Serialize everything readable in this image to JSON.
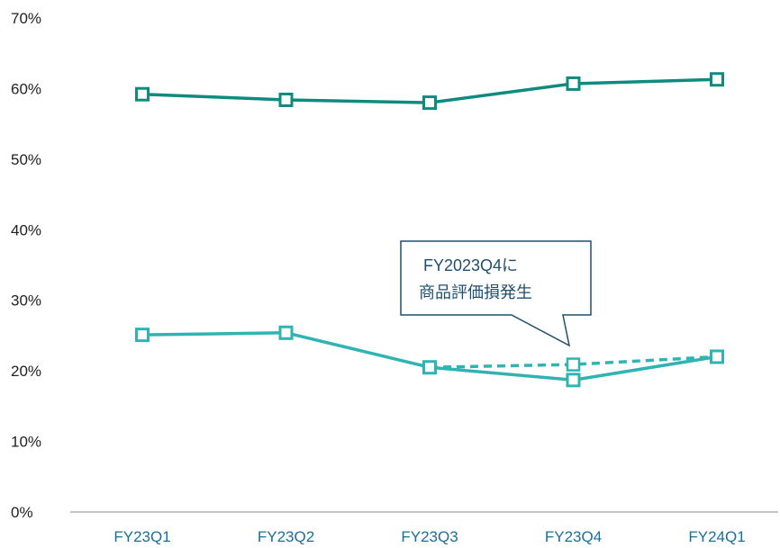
{
  "chart_data": {
    "type": "line",
    "categories": [
      "FY23Q1",
      "FY23Q2",
      "FY23Q3",
      "FY23Q4",
      "FY24Q1"
    ],
    "ylim": [
      0,
      70
    ],
    "yticks": [
      "0%",
      "10%",
      "20%",
      "30%",
      "40%",
      "50%",
      "60%",
      "70%"
    ],
    "grid": false,
    "series": [
      {
        "values": [
          59.2,
          58.4,
          58.0,
          60.7,
          61.3
        ],
        "color": "#0e8a7e",
        "style": "solid"
      },
      {
        "values": [
          25.1,
          25.4,
          20.5,
          18.7,
          22.0
        ],
        "color": "#2fb3b3",
        "style": "solid"
      },
      {
        "values": [
          null,
          null,
          20.5,
          20.9,
          22.0
        ],
        "color": "#2fb3b3",
        "style": "dashed"
      }
    ],
    "annotation": {
      "lines": [
        "FY2023Q4に",
        "商品評価損発生"
      ],
      "category": "FY23Q4",
      "border_color": "#1f4e6e"
    }
  }
}
